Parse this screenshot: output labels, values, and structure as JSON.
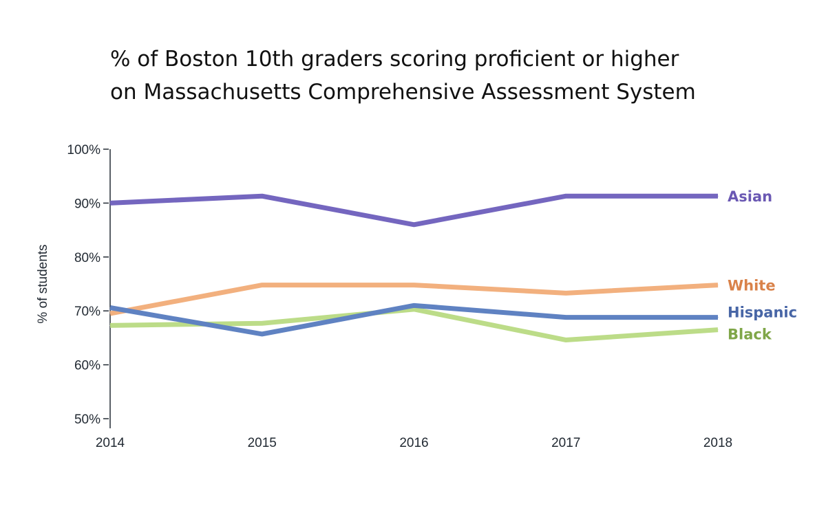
{
  "chart_data": {
    "type": "line",
    "title_line1": "% of Boston 10th graders scoring proficient or higher",
    "title_line2": "on Massachusetts Comprehensive Assessment System",
    "ylabel": "% of students",
    "xlabel": "",
    "x": [
      "2014",
      "2015",
      "2016",
      "2017",
      "2018"
    ],
    "ylim": [
      50,
      100
    ],
    "yticks": [
      50,
      60,
      70,
      80,
      90,
      100
    ],
    "ytick_labels": [
      "50%",
      "60%",
      "70%",
      "80%",
      "90%",
      "100%"
    ],
    "series": [
      {
        "name": "Asian",
        "color": "#7466bf",
        "label_color": "#6a58b3",
        "values": [
          90,
          91.3,
          86,
          91.3,
          91.3
        ]
      },
      {
        "name": "White",
        "color": "#f2b07e",
        "label_color": "#d9824a",
        "values": [
          69.5,
          74.8,
          74.8,
          73.3,
          74.8
        ]
      },
      {
        "name": "Hispanic",
        "color": "#5f82c2",
        "label_color": "#4866a6",
        "values": [
          70.6,
          65.7,
          71,
          68.8,
          68.8
        ]
      },
      {
        "name": "Black",
        "color": "#bcdc88",
        "label_color": "#7fa648",
        "values": [
          67.3,
          67.7,
          70.3,
          64.6,
          66.5
        ]
      }
    ]
  }
}
